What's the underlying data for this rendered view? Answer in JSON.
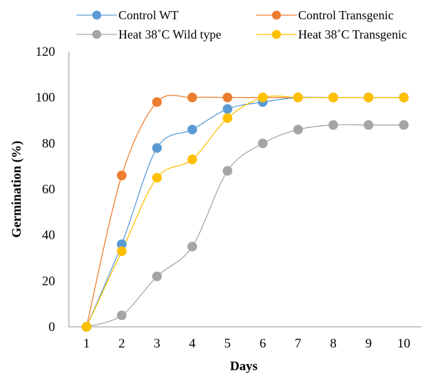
{
  "chart_data": {
    "type": "line",
    "title": "",
    "xlabel": "Days",
    "ylabel": "Germination (%)",
    "x": [
      "1",
      "2",
      "3",
      "4",
      "5",
      "6",
      "7",
      "8",
      "9",
      "10"
    ],
    "yticks": [
      "0",
      "20",
      "40",
      "60",
      "80",
      "100",
      "120"
    ],
    "ylim": [
      0,
      120
    ],
    "grid": false,
    "legend_position": "top",
    "series": [
      {
        "name": "Control WT",
        "color": "#5B9BD5",
        "values": [
          0,
          36,
          78,
          86,
          95,
          98,
          100,
          100,
          100,
          100
        ]
      },
      {
        "name": "Control Transgenic",
        "color": "#ED7D31",
        "values": [
          0,
          66,
          98,
          100,
          100,
          100,
          100,
          100,
          100,
          100
        ]
      },
      {
        "name": "Heat 38˚C Wild type",
        "color": "#A5A5A5",
        "values": [
          0,
          5,
          22,
          35,
          68,
          80,
          86,
          88,
          88,
          88
        ]
      },
      {
        "name": "Heat 38˚C Transgenic",
        "color": "#FFC000",
        "values": [
          0,
          33,
          65,
          73,
          91,
          100,
          100,
          100,
          100,
          100
        ]
      }
    ]
  }
}
